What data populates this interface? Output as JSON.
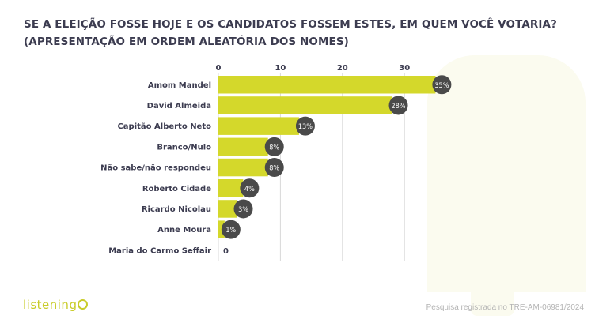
{
  "title": "SE A ELEIÇÃO FOSSE HOJE E OS CANDIDATOS FOSSEM ESTES, EM QUEM VOCÊ VOTARIA? (APRESENTAÇÃO EM ORDEM ALEATÓRIA DOS NOMES)",
  "footer": {
    "logo_text": "listening",
    "note": "Pesquisa registrada no TRE-AM-06981/2024"
  },
  "colors": {
    "bar": "#d4d82b",
    "badge": "#4a4a4a",
    "badge_text": "#ffffff",
    "grid": "#d9d9d9",
    "text": "#3c3c50"
  },
  "chart_data": {
    "type": "bar",
    "orientation": "horizontal",
    "categories": [
      "Amom Mandel",
      "David Almeida",
      "Capitão Alberto Neto",
      "Branco/Nulo",
      "Não sabe/não respondeu",
      "Roberto Cidade",
      "Ricardo Nicolau",
      "Anne Moura",
      "Maria do Carmo Seffair"
    ],
    "values": [
      35,
      28,
      13,
      8,
      8,
      4,
      3,
      1,
      0
    ],
    "value_labels": [
      "35%",
      "28%",
      "13%",
      "8%",
      "8%",
      "4%",
      "3%",
      "1%",
      "0"
    ],
    "xticks": [
      "0",
      "10",
      "20",
      "30"
    ],
    "xlim": [
      0,
      38
    ],
    "grid": true,
    "xaxis_position": "top"
  }
}
